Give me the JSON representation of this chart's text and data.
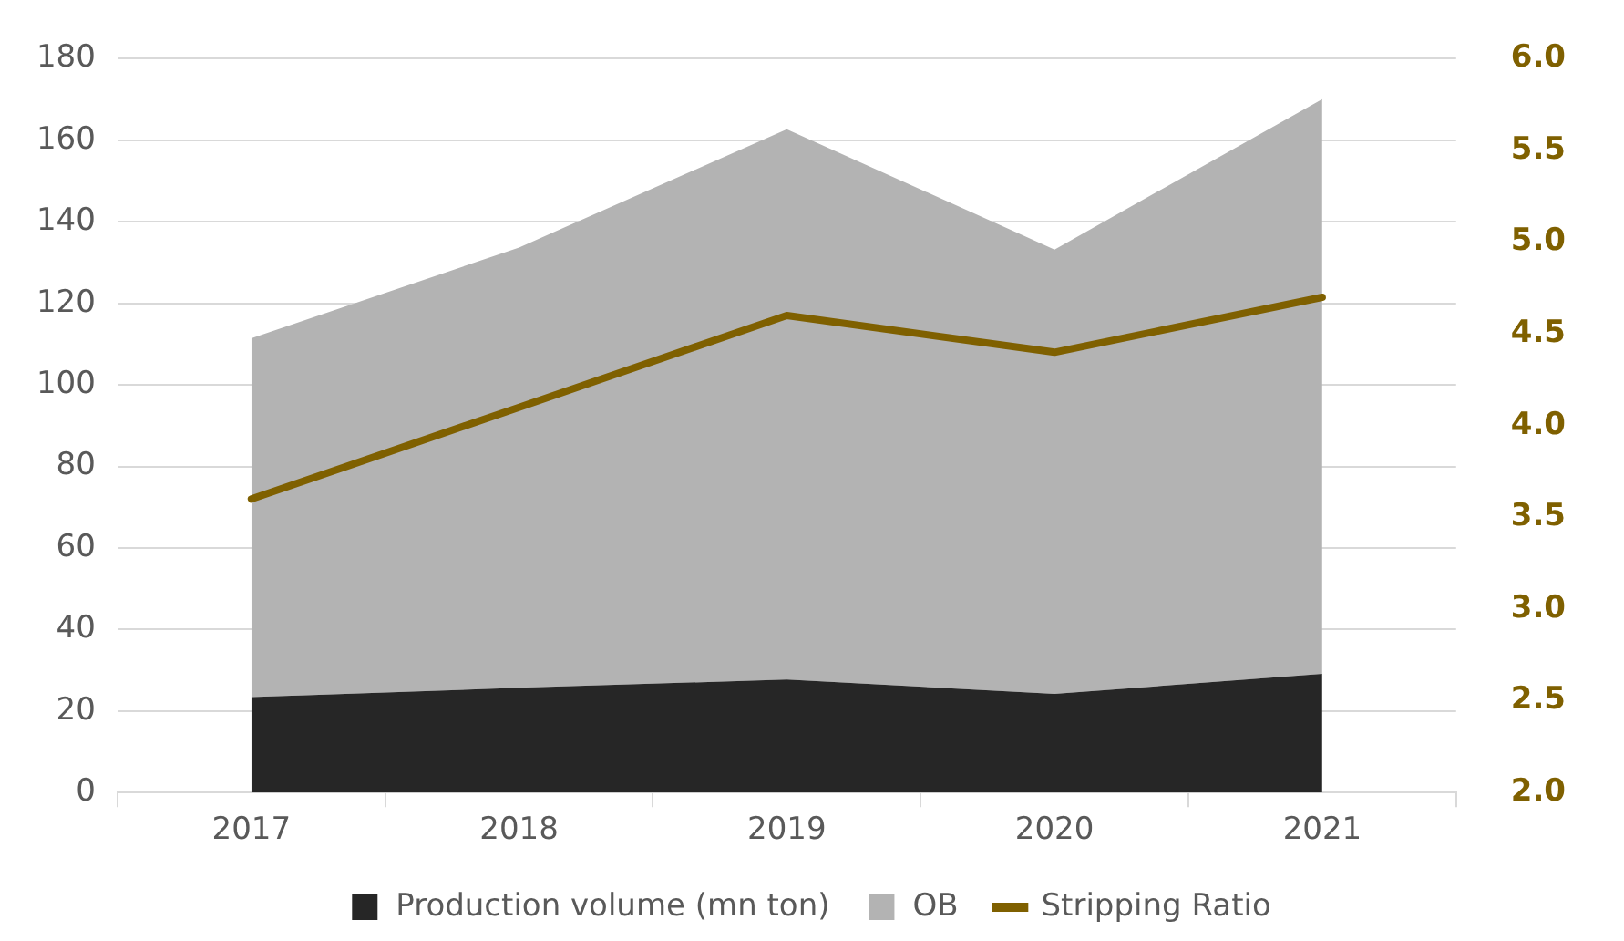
{
  "chart_data": {
    "type": "area",
    "categories": [
      "2017",
      "2018",
      "2019",
      "2020",
      "2021"
    ],
    "series": [
      {
        "name": "Production volume (mn ton)",
        "color": "#262626",
        "values": [
          23.4,
          25.7,
          27.7,
          24.2,
          29.1
        ]
      },
      {
        "name": "OB",
        "color": "#b3b3b3",
        "values": [
          88,
          108,
          135,
          109,
          141
        ]
      },
      {
        "name": "Stripping Ratio",
        "type": "line",
        "axis": "y2",
        "color": "#7f6000",
        "values": [
          3.6,
          4.1,
          4.6,
          4.4,
          4.7
        ]
      }
    ],
    "stacked": true,
    "ylim": [
      0,
      180
    ],
    "yticks": [
      0,
      20,
      40,
      60,
      80,
      100,
      120,
      140,
      160,
      180
    ],
    "y2lim": [
      2,
      6
    ],
    "y2ticks": [
      {
        "value": 2,
        "label": "2.0"
      },
      {
        "value": 2.5,
        "label": "2.5"
      },
      {
        "value": 3,
        "label": "3.0"
      },
      {
        "value": 3.5,
        "label": "3.5"
      },
      {
        "value": 4,
        "label": "4.0"
      },
      {
        "value": 4.5,
        "label": "4.5"
      },
      {
        "value": 5,
        "label": "5.0"
      },
      {
        "value": 5.5,
        "label": "5.5"
      },
      {
        "value": 6,
        "label": "6.0"
      }
    ],
    "grid": "y",
    "legend": "bottom"
  }
}
